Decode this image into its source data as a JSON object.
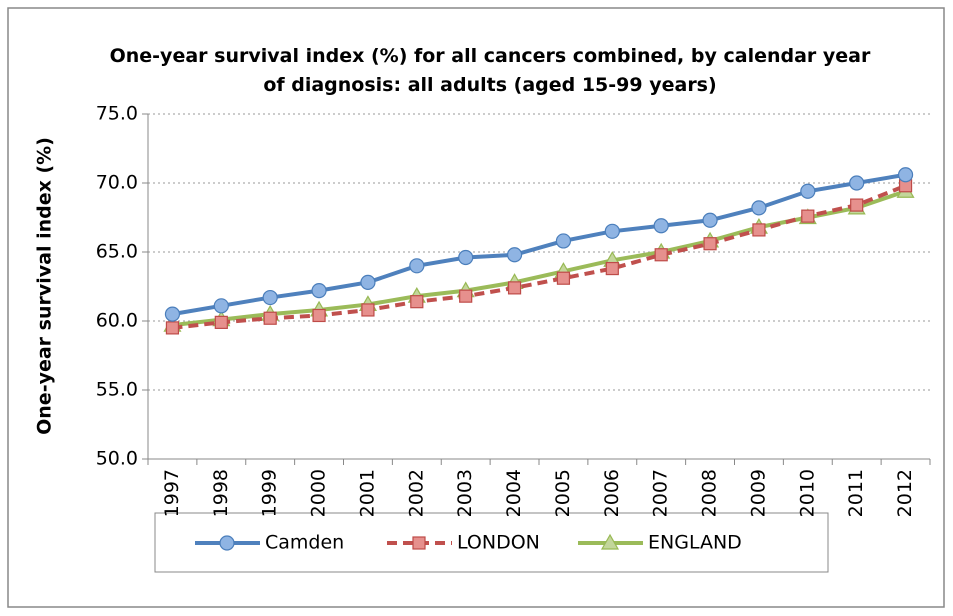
{
  "chart_data": {
    "type": "line",
    "title": "One-year survival index (%) for all cancers combined, by calendar year of diagnosis: all adults (aged 15-99 years)",
    "y_label": "One-year survival index (%)",
    "categories": [
      "1997",
      "1998",
      "1999",
      "2000",
      "2001",
      "2002",
      "2003",
      "2004",
      "2005",
      "2006",
      "2007",
      "2008",
      "2009",
      "2010",
      "2011",
      "2012"
    ],
    "series": [
      {
        "name": "Camden",
        "color": "#4f81bd",
        "marker": "circle",
        "dash": false,
        "values": [
          60.5,
          61.1,
          61.7,
          62.2,
          62.8,
          64.0,
          64.6,
          64.8,
          65.8,
          66.5,
          66.9,
          67.3,
          68.2,
          69.4,
          70.0,
          70.6
        ]
      },
      {
        "name": "LONDON",
        "color": "#c0504d",
        "marker": "square",
        "dash": true,
        "values": [
          59.5,
          59.9,
          60.2,
          60.4,
          60.8,
          61.4,
          61.8,
          62.4,
          63.1,
          63.8,
          64.8,
          65.6,
          66.6,
          67.6,
          68.4,
          69.8
        ]
      },
      {
        "name": "ENGLAND",
        "color": "#9bbb59",
        "marker": "triangle",
        "dash": false,
        "values": [
          59.7,
          60.1,
          60.5,
          60.8,
          61.2,
          61.8,
          62.2,
          62.8,
          63.6,
          64.4,
          65.0,
          65.8,
          66.8,
          67.5,
          68.2,
          69.4
        ]
      }
    ],
    "ylim": [
      50,
      75
    ],
    "yticks": [
      {
        "value": 50,
        "label": "50.0"
      },
      {
        "value": 55,
        "label": "55.0"
      },
      {
        "value": 60,
        "label": "60.0"
      },
      {
        "value": 65,
        "label": "65.0"
      },
      {
        "value": 70,
        "label": "70.0"
      },
      {
        "value": 75,
        "label": "75.0"
      }
    ],
    "grid": true,
    "legend": "bottom"
  }
}
